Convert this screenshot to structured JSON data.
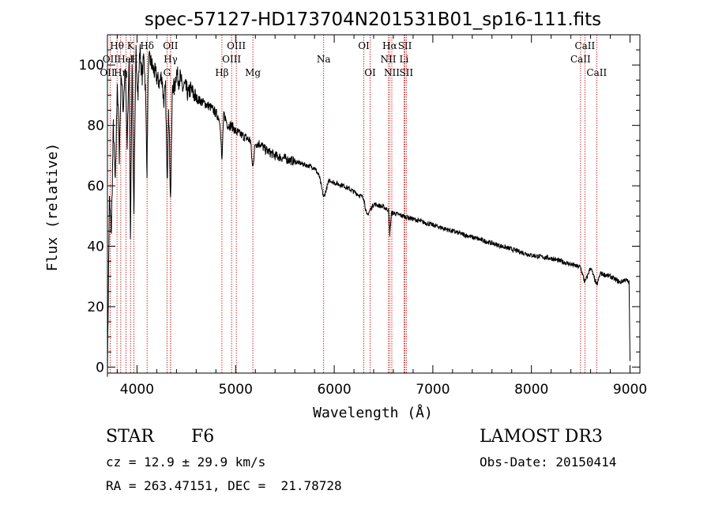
{
  "chart_data": {
    "type": "line",
    "title": "spec-57127-HD173704N201531B01_sp16-111.fits",
    "xlabel": "Wavelength (Å)",
    "ylabel": "Flux (relative)",
    "xlim": [
      3700,
      9100
    ],
    "ylim": [
      -2,
      110
    ],
    "xticks": [
      4000,
      5000,
      6000,
      7000,
      8000,
      9000
    ],
    "yticks": [
      0,
      20,
      40,
      60,
      80,
      100
    ],
    "series": [
      {
        "name": "flux",
        "x": [
          3700,
          3720,
          3740,
          3760,
          3780,
          3800,
          3820,
          3840,
          3860,
          3880,
          3900,
          3920,
          3933,
          3950,
          3968,
          3990,
          4010,
          4030,
          4050,
          4070,
          4085,
          4101,
          4115,
          4130,
          4150,
          4170,
          4190,
          4210,
          4230,
          4250,
          4270,
          4290,
          4305,
          4320,
          4340,
          4360,
          4380,
          4400,
          4420,
          4440,
          4460,
          4480,
          4500,
          4520,
          4540,
          4560,
          4580,
          4600,
          4650,
          4700,
          4750,
          4800,
          4840,
          4861,
          4880,
          4920,
          4960,
          5000,
          5050,
          5100,
          5150,
          5172,
          5200,
          5250,
          5300,
          5400,
          5500,
          5600,
          5700,
          5800,
          5850,
          5893,
          5950,
          6000,
          6100,
          6200,
          6300,
          6330,
          6400,
          6500,
          6550,
          6563,
          6580,
          6600,
          6700,
          6800,
          7000,
          7200,
          7400,
          7600,
          7800,
          8000,
          8200,
          8400,
          8498,
          8542,
          8600,
          8662,
          8700,
          8800,
          8850,
          8900,
          8950,
          8990,
          9000
        ],
        "y": [
          0,
          55,
          45,
          80,
          60,
          95,
          70,
          98,
          85,
          100,
          72,
          103,
          40,
          103,
          50,
          105,
          90,
          106,
          95,
          104,
          92,
          65,
          100,
          102,
          100,
          98,
          97,
          95,
          94,
          97,
          88,
          92,
          60,
          88,
          55,
          94,
          92,
          98,
          95,
          96,
          92,
          93,
          92,
          90,
          92,
          91,
          90,
          89,
          88,
          87,
          86,
          84,
          82,
          68,
          84,
          80,
          80,
          78,
          77,
          76,
          75,
          66,
          74,
          74,
          72,
          70,
          69,
          68,
          67,
          66,
          63,
          56,
          62,
          61,
          60,
          58,
          56,
          50,
          54,
          53,
          52,
          44,
          51,
          51,
          50,
          49,
          47,
          45,
          43,
          41,
          39,
          37,
          36,
          34,
          33,
          28,
          33,
          27,
          31,
          30,
          29,
          28,
          29,
          28,
          2
        ]
      }
    ],
    "spectral_lines": [
      {
        "label": "Hθ",
        "x": 3797,
        "row": 1
      },
      {
        "label": "K",
        "x": 3934,
        "row": 1
      },
      {
        "label": "Hδ",
        "x": 4102,
        "row": 1
      },
      {
        "label": "OII",
        "x": 4340,
        "row": 1
      },
      {
        "label": "OIII",
        "x": 5007,
        "row": 1
      },
      {
        "label": "OI",
        "x": 6300,
        "row": 1
      },
      {
        "label": "Hα",
        "x": 6563,
        "row": 1
      },
      {
        "label": "SII",
        "x": 6717,
        "row": 1
      },
      {
        "label": "CaII",
        "x": 8542,
        "row": 1
      },
      {
        "label": "OII",
        "x": 3727,
        "row": 2
      },
      {
        "label": "HeI",
        "x": 3889,
        "row": 2
      },
      {
        "label": "H",
        "x": 3968,
        "row": 2
      },
      {
        "label": "Hγ",
        "x": 4341,
        "row": 2
      },
      {
        "label": "OIII",
        "x": 4959,
        "row": 2
      },
      {
        "label": "Na",
        "x": 5893,
        "row": 2
      },
      {
        "label": "NII",
        "x": 6548,
        "row": 2
      },
      {
        "label": "Li",
        "x": 6708,
        "row": 2
      },
      {
        "label": "CaII",
        "x": 8498,
        "row": 2
      },
      {
        "label": "OII",
        "x": 3700,
        "row": 3
      },
      {
        "label": "Hη",
        "x": 3835,
        "row": 3
      },
      {
        "label": "G",
        "x": 4304,
        "row": 3
      },
      {
        "label": "Hβ",
        "x": 4861,
        "row": 3
      },
      {
        "label": "Mg",
        "x": 5175,
        "row": 3
      },
      {
        "label": "OI",
        "x": 6364,
        "row": 3
      },
      {
        "label": "NII",
        "x": 6584,
        "row": 3
      },
      {
        "label": "SII",
        "x": 6731,
        "row": 3
      },
      {
        "label": "CaII",
        "x": 8662,
        "row": 3
      }
    ],
    "line_color": "#c00000",
    "spectrum_color": "#000000"
  },
  "info": {
    "class": "STAR",
    "subclass": "F6",
    "survey": "LAMOST DR3",
    "cz": "cz = 12.9 ± 29.9 km/s",
    "obs_date": "Obs-Date: 20150414",
    "coords": "RA = 263.47151, DEC =  21.78728"
  }
}
